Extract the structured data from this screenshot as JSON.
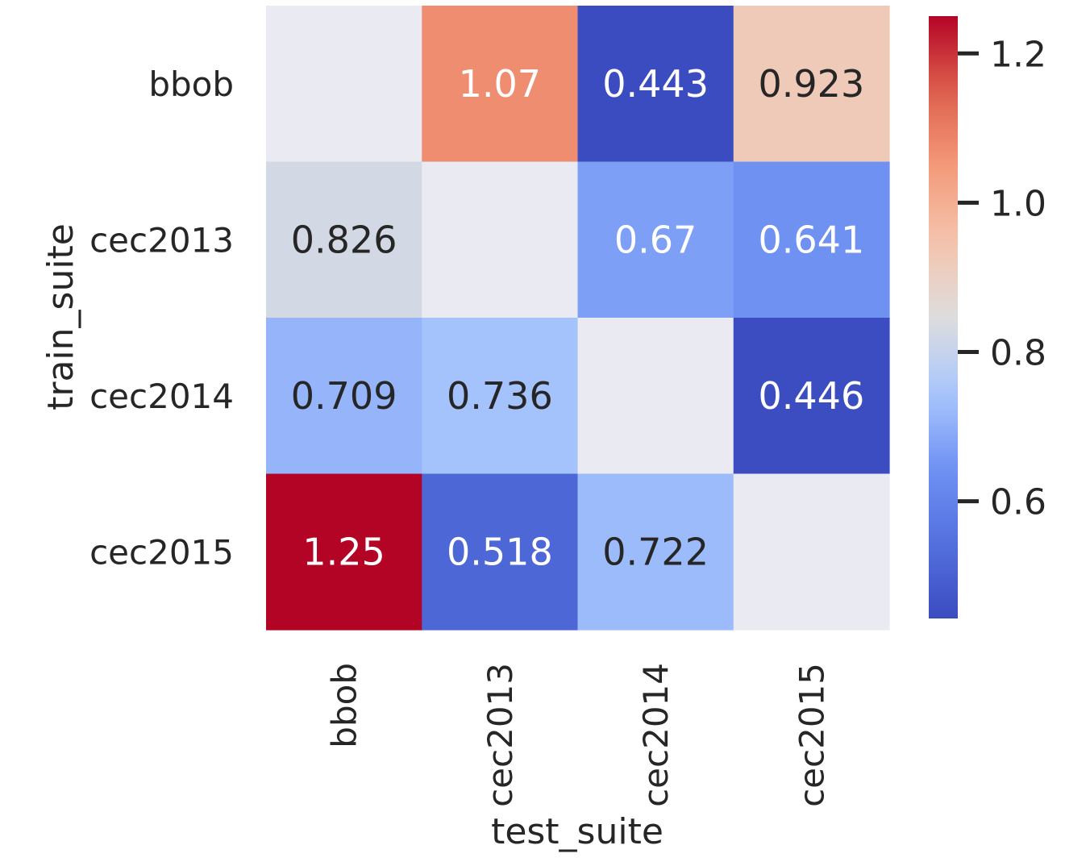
{
  "chart_data": {
    "type": "heatmap",
    "title": "",
    "xlabel": "test_suite",
    "ylabel": "train_suite",
    "x_categories": [
      "bbob",
      "cec2013",
      "cec2014",
      "cec2015"
    ],
    "y_categories": [
      "bbob",
      "cec2013",
      "cec2014",
      "cec2015"
    ],
    "values": [
      [
        null,
        1.07,
        0.443,
        0.923
      ],
      [
        0.826,
        null,
        0.67,
        0.641
      ],
      [
        0.709,
        0.736,
        null,
        0.446
      ],
      [
        1.25,
        0.518,
        0.722,
        null
      ]
    ],
    "value_labels": [
      [
        null,
        "1.07",
        "0.443",
        "0.923"
      ],
      [
        null,
        null,
        null,
        null
      ],
      [
        null,
        null,
        null,
        null
      ],
      [
        null,
        null,
        null,
        null
      ]
    ],
    "colormap": "coolwarm",
    "missing_color": "#eaeaf2",
    "colorbar": {
      "vmin": 0.443,
      "vmax": 1.25,
      "ticks": [
        0.6,
        0.8,
        1.0,
        1.2
      ],
      "tick_labels": [
        "0.6",
        "0.8",
        "1.0",
        "1.2"
      ]
    }
  }
}
